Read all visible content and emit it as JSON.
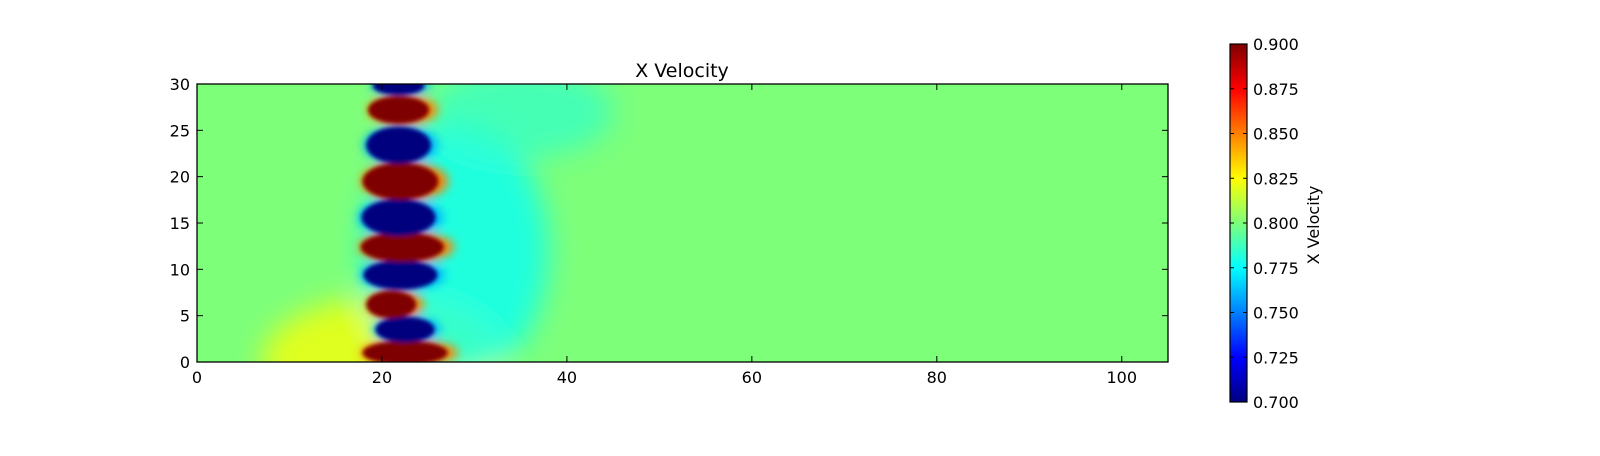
{
  "chart_data": {
    "type": "heatmap",
    "title": "X Velocity",
    "xlabel": "",
    "ylabel": "",
    "xlim": [
      0,
      105
    ],
    "ylim": [
      0,
      30
    ],
    "x_ticks": [
      0,
      20,
      40,
      60,
      80,
      100
    ],
    "y_ticks": [
      0,
      5,
      10,
      15,
      20,
      25,
      30
    ],
    "x_tick_labels": [
      "0",
      "20",
      "40",
      "60",
      "80",
      "100"
    ],
    "y_tick_labels": [
      "0",
      "5",
      "10",
      "15",
      "20",
      "25",
      "30"
    ],
    "background_value": 0.8,
    "colormap": "jet",
    "colorbar": {
      "label": "X Velocity",
      "range": [
        0.7,
        0.9
      ],
      "ticks": [
        0.7,
        0.725,
        0.75,
        0.775,
        0.8,
        0.825,
        0.85,
        0.875,
        0.9
      ],
      "tick_labels": [
        "0.700",
        "0.725",
        "0.750",
        "0.775",
        "0.800",
        "0.825",
        "0.850",
        "0.875",
        "0.900"
      ]
    },
    "blobs": [
      {
        "type": "high",
        "x": 22.5,
        "y": 1.0,
        "rx": 4.6,
        "ry": 1.3,
        "value": 0.9
      },
      {
        "type": "low",
        "x": 22.5,
        "y": 3.5,
        "rx": 3.2,
        "ry": 1.4,
        "value": 0.7
      },
      {
        "type": "high",
        "x": 21.0,
        "y": 6.2,
        "rx": 2.7,
        "ry": 1.5,
        "value": 0.9
      },
      {
        "type": "low",
        "x": 22.0,
        "y": 9.4,
        "rx": 4.0,
        "ry": 1.6,
        "value": 0.7
      },
      {
        "type": "high",
        "x": 22.2,
        "y": 12.4,
        "rx": 4.5,
        "ry": 1.6,
        "value": 0.9
      },
      {
        "type": "low",
        "x": 21.8,
        "y": 15.6,
        "rx": 4.0,
        "ry": 2.0,
        "value": 0.7
      },
      {
        "type": "high",
        "x": 22.0,
        "y": 19.5,
        "rx": 4.1,
        "ry": 2.0,
        "value": 0.9
      },
      {
        "type": "low",
        "x": 21.8,
        "y": 23.4,
        "rx": 3.5,
        "ry": 2.0,
        "value": 0.7
      },
      {
        "type": "high",
        "x": 21.8,
        "y": 27.2,
        "rx": 3.3,
        "ry": 1.5,
        "value": 0.9
      },
      {
        "type": "low",
        "x": 21.8,
        "y": 29.8,
        "rx": 2.8,
        "ry": 1.0,
        "value": 0.7
      }
    ],
    "halos": [
      {
        "type": "high",
        "x": 20.0,
        "y": 0.0,
        "rx": 13.0,
        "ry": 7.0,
        "value": 0.825
      },
      {
        "type": "low",
        "x": 28.0,
        "y": 12.0,
        "rx": 10.0,
        "ry": 14.0,
        "value": 0.775
      },
      {
        "type": "low",
        "x": 35.0,
        "y": 27.0,
        "rx": 10.0,
        "ry": 5.0,
        "value": 0.785
      }
    ],
    "grid": false,
    "legend": "none"
  }
}
